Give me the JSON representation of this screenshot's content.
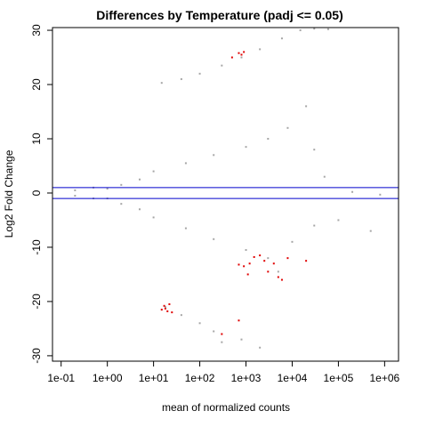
{
  "chart_data": {
    "type": "scatter",
    "title": "Differences by Temperature (padj <= 0.05)",
    "xlabel": "mean of normalized counts",
    "ylabel": "Log2 Fold Change",
    "x_scale": "log10",
    "xlim": [
      0.065,
      2000000
    ],
    "ylim": [
      -31,
      30.5
    ],
    "x_ticks": [
      0.1,
      1,
      10,
      100,
      1000,
      10000,
      100000,
      1000000
    ],
    "x_tick_labels": [
      "1e-01",
      "1e+00",
      "1e+01",
      "1e+02",
      "1e+03",
      "1e+04",
      "1e+05",
      "1e+06"
    ],
    "y_ticks": [
      -30,
      -20,
      -10,
      0,
      10,
      20,
      30
    ],
    "y_tick_labels": [
      "-30",
      "-20",
      "-10",
      "0",
      "10",
      "20",
      "30"
    ],
    "hlines": {
      "values": [
        1,
        -1
      ],
      "color": "#0000cc"
    },
    "colors": {
      "not_significant": "#a6a6a6",
      "significant": "#e00000",
      "threshold_line": "#0000cc"
    },
    "series": [
      {
        "color": "#a6a6a6",
        "points": [
          [
            0.2,
            0.5
          ],
          [
            0.5,
            1.0
          ],
          [
            1.0,
            0.8
          ],
          [
            2.0,
            1.5
          ],
          [
            5,
            2.5
          ],
          [
            10,
            4.0
          ],
          [
            50,
            5.5
          ],
          [
            200,
            7.0
          ],
          [
            1000,
            8.5
          ],
          [
            3000,
            10.0
          ],
          [
            8000,
            12.0
          ],
          [
            20000,
            16.0
          ],
          [
            30000,
            8.0
          ],
          [
            50000,
            3.0
          ],
          [
            0.2,
            -0.5
          ],
          [
            0.5,
            -1.0
          ],
          [
            1.0,
            -1.0
          ],
          [
            2.0,
            -2.0
          ],
          [
            5,
            -3.0
          ],
          [
            10,
            -4.5
          ],
          [
            50,
            -6.5
          ],
          [
            200,
            -8.5
          ],
          [
            1000,
            -10.5
          ],
          [
            3000,
            -12.0
          ],
          [
            5000,
            -14.5
          ],
          [
            10000,
            -9.0
          ],
          [
            30000,
            -6.0
          ],
          [
            100000,
            -5.0
          ],
          [
            500000,
            -7.0
          ],
          [
            200000,
            0.2
          ],
          [
            800000,
            -0.3
          ],
          [
            15,
            20.3
          ],
          [
            40,
            21.0
          ],
          [
            100,
            22.0
          ],
          [
            300,
            23.5
          ],
          [
            800,
            25.0
          ],
          [
            2000,
            26.5
          ],
          [
            6000,
            28.5
          ],
          [
            15000,
            30.0
          ],
          [
            30000,
            30.3
          ],
          [
            60000,
            30.2
          ],
          [
            18,
            -21.0
          ],
          [
            40,
            -22.5
          ],
          [
            100,
            -24.0
          ],
          [
            200,
            -25.5
          ],
          [
            800,
            -27.0
          ],
          [
            300,
            -27.5
          ],
          [
            2000,
            -28.5
          ]
        ]
      },
      {
        "color": "#e00000",
        "points": [
          [
            700,
            25.8
          ],
          [
            900,
            26.0
          ],
          [
            500,
            25.0
          ],
          [
            800,
            25.5
          ],
          [
            15,
            -21.5
          ],
          [
            18,
            -21.3
          ],
          [
            20,
            -21.8
          ],
          [
            25,
            -22.0
          ],
          [
            22,
            -20.5
          ],
          [
            17,
            -20.8
          ],
          [
            700,
            -13.2
          ],
          [
            900,
            -13.5
          ],
          [
            1200,
            -13.0
          ],
          [
            2000,
            -11.5
          ],
          [
            3000,
            -14.5
          ],
          [
            5000,
            -15.5
          ],
          [
            1500,
            -11.8
          ],
          [
            2500,
            -12.5
          ],
          [
            4000,
            -13.0
          ],
          [
            8000,
            -12.0
          ],
          [
            20000,
            -12.5
          ],
          [
            1100,
            -15.0
          ],
          [
            6000,
            -16.0
          ],
          [
            300,
            -26.0
          ],
          [
            700,
            -23.5
          ]
        ]
      }
    ]
  }
}
